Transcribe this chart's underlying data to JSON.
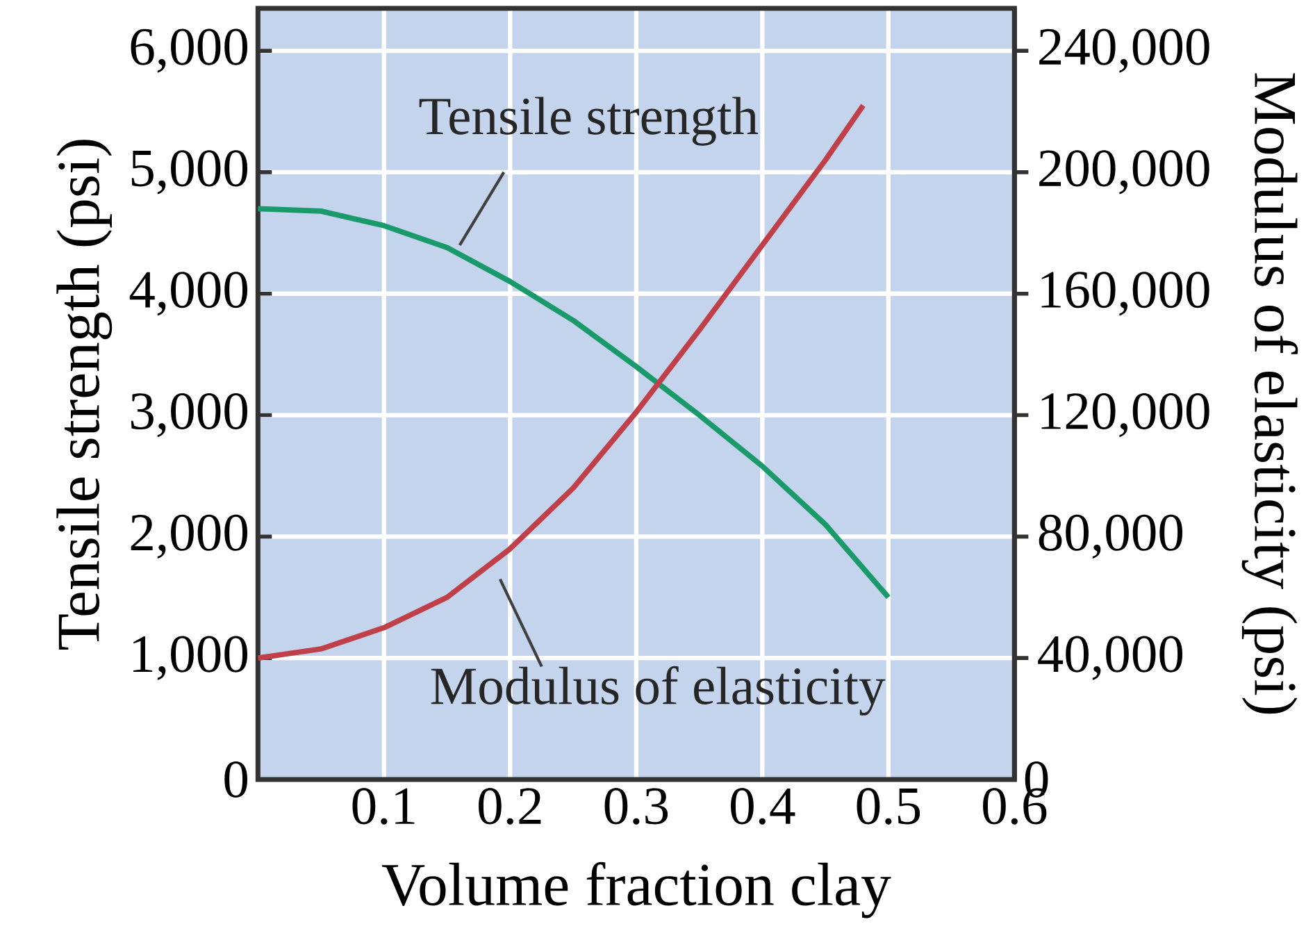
{
  "chart_data": {
    "type": "line",
    "xlabel": "Volume fraction clay",
    "ylabel": "Tensile strength (psi)",
    "y2label": "Modulus of elasticity (psi)",
    "xlim": [
      0,
      0.6
    ],
    "xticks": [
      0.1,
      0.2,
      0.3,
      0.4,
      0.5,
      0.6
    ],
    "ylim": [
      0,
      6350
    ],
    "yticks": [
      0,
      {
        "value": 1000,
        "label": "1,000"
      },
      {
        "value": 2000,
        "label": "2,000"
      },
      {
        "value": 3000,
        "label": "3,000"
      },
      {
        "value": 4000,
        "label": "4,000"
      },
      {
        "value": 5000,
        "label": "5,000"
      },
      {
        "value": 6000,
        "label": "6,000"
      }
    ],
    "y2lim": [
      0,
      254000
    ],
    "y2ticks": [
      0,
      {
        "value": 40000,
        "label": "40,000"
      },
      {
        "value": 80000,
        "label": "80,000"
      },
      {
        "value": 120000,
        "label": "120,000"
      },
      {
        "value": 160000,
        "label": "160,000"
      },
      {
        "value": 200000,
        "label": "200,000"
      },
      {
        "value": 240000,
        "label": "240,000"
      }
    ],
    "grid": true,
    "marker": "none",
    "line_style": "solid",
    "series": [
      {
        "color": "#1a9a6a",
        "x": [
          0,
          0.05,
          0.1,
          0.15,
          0.2,
          0.25,
          0.3,
          0.35,
          0.4,
          0.45,
          0.5
        ],
        "values": [
          4700,
          4680,
          4560,
          4380,
          4100,
          3780,
          3400,
          3000,
          2580,
          2100,
          1500
        ]
      },
      {
        "color": "#c0404a",
        "axis": "y2",
        "x": [
          0,
          0.05,
          0.1,
          0.15,
          0.2,
          0.25,
          0.3,
          0.35,
          0.4,
          0.45,
          0.48
        ],
        "values": [
          40000,
          43000,
          50000,
          60000,
          76000,
          96000,
          121000,
          148000,
          176000,
          204000,
          222000
        ]
      }
    ],
    "annotations": [
      "Tensile strength",
      "Modulus of elasticity"
    ]
  }
}
